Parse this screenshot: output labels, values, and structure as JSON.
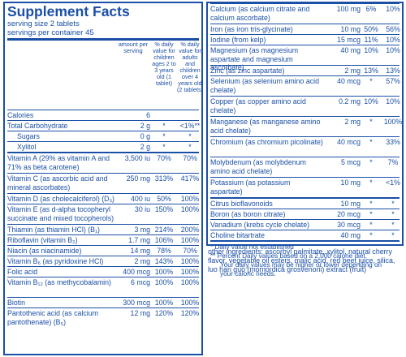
{
  "title": "Supplement Facts",
  "serving_size": "serving size  2 tablets",
  "servings": "servings per container  45",
  "headers": {
    "amount": "amount per serving",
    "col1": "% daily value for children ages 2 to 3 years old (1 tablet)",
    "col2": "% daily value for adults and children over 4 years old (2 tablets)"
  },
  "left_rows": [
    {
      "name": "Calories",
      "amount": "6",
      "c1": "",
      "c2": "",
      "h": 12,
      "thick": false,
      "indent": false
    },
    {
      "name": "Total Carbohydrate",
      "amount": "2 g",
      "c1": "*",
      "c2": "<1%**",
      "h": 12,
      "thick": false,
      "indent": false
    },
    {
      "name": "Sugars",
      "amount": "0 g",
      "c1": "*",
      "c2": "*",
      "h": 12,
      "thick": false,
      "indent": true
    },
    {
      "name": "Xylitol",
      "amount": "2 g",
      "c1": "*",
      "c2": "*",
      "h": 12,
      "thick": false,
      "indent": true
    },
    {
      "name": "Vitamin A (29% as vitamin A and 71% as beta carotene)",
      "amount": "3,500 iu",
      "c1": "70%",
      "c2": "70%",
      "h": 24,
      "thick": true,
      "indent": false
    },
    {
      "name": "Vitamin C (as ascorbic acid and mineral ascorbates)",
      "amount": "250 mg",
      "c1": "313%",
      "c2": "417%",
      "h": 24,
      "thick": false,
      "indent": false
    },
    {
      "name": "Vitamin D (as cholecalciferol) (D₃)",
      "amount": "400 iu",
      "c1": "50%",
      "c2": "100%",
      "h": 12,
      "thick": false,
      "indent": false
    },
    {
      "name": "Vitamin E (as d-alpha tocopheryl succinate and mixed tocopherols)",
      "amount": "30 iu",
      "c1": "150%",
      "c2": "100%",
      "h": 24,
      "thick": false,
      "indent": false
    },
    {
      "name": "Thiamin (as thiamin HCl) (B₁)",
      "amount": "3 mg",
      "c1": "214%",
      "c2": "200%",
      "h": 12,
      "thick": false,
      "indent": false
    },
    {
      "name": "Riboflavin (vitamin B₂)",
      "amount": "1.7 mg",
      "c1": "106%",
      "c2": "100%",
      "h": 12,
      "thick": false,
      "indent": false
    },
    {
      "name": "Niacin (as niacinamide)",
      "amount": "14 mg",
      "c1": "78%",
      "c2": "70%",
      "h": 12,
      "thick": false,
      "indent": false
    },
    {
      "name": "Vitamin B₆ (as pyridoxine HCl)",
      "amount": "2 mg",
      "c1": "143%",
      "c2": "100%",
      "h": 12,
      "thick": false,
      "indent": false
    },
    {
      "name": "Folic acid",
      "amount": "400 mcg",
      "c1": "100%",
      "c2": "100%",
      "h": 12,
      "thick": false,
      "indent": false
    },
    {
      "name": "Vitamin B₁₂ (as methycobalamin)",
      "amount": "6 mcg",
      "c1": "100%",
      "c2": "100%",
      "h": 24,
      "thick": false,
      "indent": false
    },
    {
      "name": "Biotin",
      "amount": "300 mcg",
      "c1": "100%",
      "c2": "100%",
      "h": 12,
      "thick": false,
      "indent": false
    },
    {
      "name": "Pantothenic acid (as calcium pantothenate) (B₅)",
      "amount": "12 mg",
      "c1": "120%",
      "c2": "120%",
      "h": 24,
      "thick": false,
      "indent": false
    }
  ],
  "right_rows": [
    {
      "name": "Calcium (as calcium citrate and calcium ascorbate)",
      "amount": "100 mg",
      "c1": "6%",
      "c2": "10%",
      "h": 24,
      "thick": false
    },
    {
      "name": "Iron (as iron tris-glycinate)",
      "amount": "10 mg",
      "c1": "50%",
      "c2": "56%",
      "h": 12,
      "thick": false
    },
    {
      "name": "Iodine (from kelp)",
      "amount": "15 mcg",
      "c1": "11%",
      "c2": "10%",
      "h": 12,
      "thick": false
    },
    {
      "name": "Magnesium (as magnesium aspartate and magnesium ascorbate)",
      "amount": "40 mg",
      "c1": "10%",
      "c2": "10%",
      "h": 24,
      "thick": false
    },
    {
      "name": "Zinc (as zinc aspartate)",
      "amount": "2 mg",
      "c1": "13%",
      "c2": "13%",
      "h": 12,
      "thick": false
    },
    {
      "name": "Selenium (as selenium amino acid chelate)",
      "amount": "40 mcg",
      "c1": "*",
      "c2": "57%",
      "h": 24,
      "thick": false
    },
    {
      "name": "Copper (as copper amino acid chelate)",
      "amount": "0.2 mg",
      "c1": "10%",
      "c2": "10%",
      "h": 24,
      "thick": false
    },
    {
      "name": "Manganese (as manganese amino acid chelate)",
      "amount": "2 mg",
      "c1": "*",
      "c2": "100%",
      "h": 24,
      "thick": false
    },
    {
      "name": "Chromium (as chromium picolinate)",
      "amount": "40 mcg",
      "c1": "*",
      "c2": "33%",
      "h": 24,
      "thick": false
    },
    {
      "name": "Molybdenum (as molybdenum amino acid chelate)",
      "amount": "5 mcg",
      "c1": "*",
      "c2": "7%",
      "h": 24,
      "thick": false
    },
    {
      "name": "Potassium (as potassium aspartate)",
      "amount": "10 mg",
      "c1": "*",
      "c2": "<1%",
      "h": 24,
      "thick": false
    },
    {
      "name": "Citrus bioflavonoids",
      "amount": "10 mg",
      "c1": "*",
      "c2": "*",
      "h": 12,
      "thick": true
    },
    {
      "name": "Boron (as boron citrate)",
      "amount": "20 mcg",
      "c1": "*",
      "c2": "*",
      "h": 12,
      "thick": false
    },
    {
      "name": "Vanadium (krebs cycle chelate)",
      "amount": "30 mcg",
      "c1": "*",
      "c2": "*",
      "h": 12,
      "thick": false
    },
    {
      "name": "Choline bitartrate",
      "amount": "40 mg",
      "c1": "*",
      "c2": "*",
      "h": 12,
      "thick": false
    }
  ],
  "footnotes": {
    "f1": "* Daily value not established",
    "f2a": "** Percent Daily values based on a 2,000 calorie diet.",
    "f2b": "Your daily values may be higher or lower depending on",
    "f2c": "your caloric needs."
  },
  "other_ingredients": "other ingredients: ascorbyl palmitate, xylitol, natural cherry flavor, vegetable oil esters, malic acid, red beet juice, silica, luo han guo (momordica grosvenorii) extract (fruit)",
  "colors": {
    "text": "#1a4fa6",
    "rule": "#1a4fa6"
  }
}
